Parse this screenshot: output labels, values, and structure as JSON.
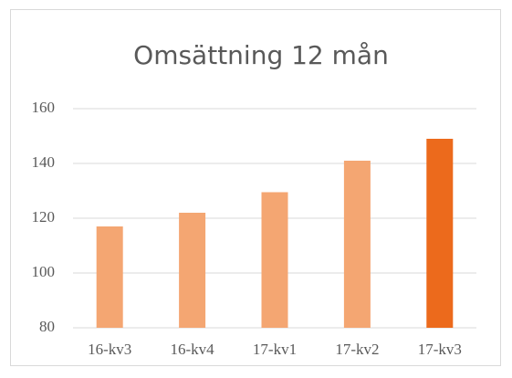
{
  "chart_data": {
    "type": "bar",
    "title": "Omsättning 12 mån",
    "categories": [
      "16-kv3",
      "16-kv4",
      "17-kv1",
      "17-kv2",
      "17-kv3"
    ],
    "values": [
      117,
      122,
      129.5,
      141,
      149
    ],
    "colors": [
      "#f4a672",
      "#f4a672",
      "#f4a672",
      "#f4a672",
      "#ec6a1c"
    ],
    "ylim": [
      80,
      160
    ],
    "yticks": [
      80,
      100,
      120,
      140,
      160
    ],
    "grid": true
  }
}
